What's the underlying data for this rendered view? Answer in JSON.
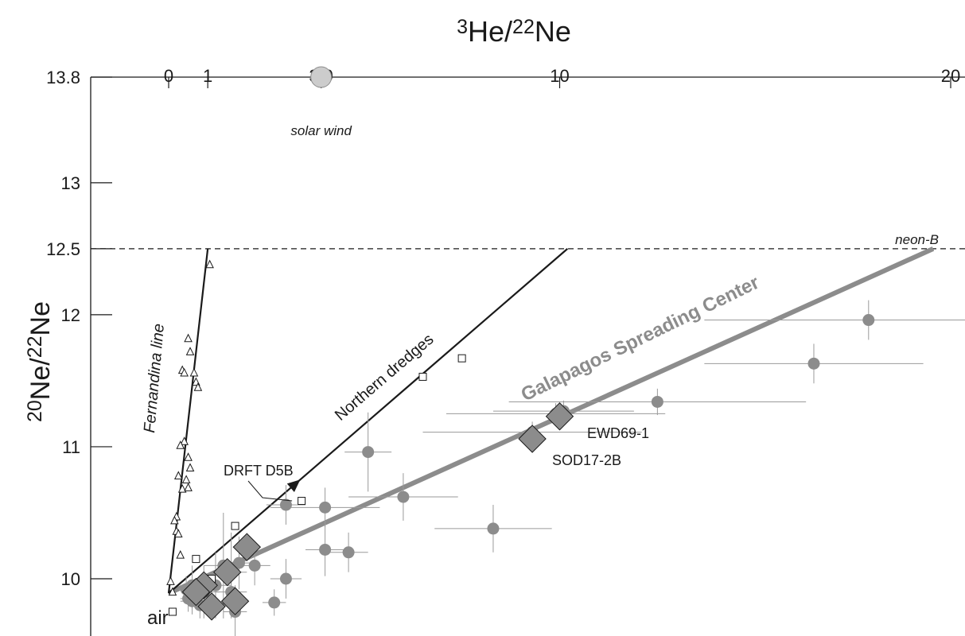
{
  "chart_data": {
    "type": "scatter",
    "title": "",
    "xlabel": "3He/22Ne",
    "ylabel": "20Ne/22Ne",
    "xlim": [
      0,
      20
    ],
    "ylim": [
      9.8,
      13.8
    ],
    "x_axis_position": "top",
    "grid": false,
    "legend": "none",
    "x_ticks": [
      {
        "value": 0,
        "label": "0"
      },
      {
        "value": 1,
        "label": "1"
      },
      {
        "value": 3.9,
        "label": "3.9"
      },
      {
        "value": 10,
        "label": "10"
      },
      {
        "value": 20,
        "label": "20"
      }
    ],
    "y_ticks": [
      {
        "value": 13.8,
        "label": "13.8"
      },
      {
        "value": 13,
        "label": "13"
      },
      {
        "value": 12.5,
        "label": "12.5"
      },
      {
        "value": 12,
        "label": "12"
      },
      {
        "value": 11,
        "label": "11"
      },
      {
        "value": 10,
        "label": "10"
      }
    ],
    "reference_line": {
      "y": 12.5,
      "style": "dashed",
      "label": "neon-B"
    },
    "trend_lines": [
      {
        "label": "Fernandina line",
        "x": [
          0,
          1
        ],
        "y": [
          9.89,
          12.5
        ]
      },
      {
        "label": "Northern dredges",
        "x": [
          0,
          10.2
        ],
        "y": [
          9.89,
          12.5
        ]
      },
      {
        "label": "Galapagos Spreading Center",
        "x": [
          0,
          20
        ],
        "y": [
          9.89,
          12.5
        ],
        "color": "#8c8c8c"
      }
    ],
    "special_points": [
      {
        "label": "solar wind",
        "x": 3.9,
        "y": 13.8,
        "color": "#cccccc"
      },
      {
        "label": "air",
        "x": 0,
        "y": 9.89
      }
    ],
    "series": [
      {
        "name": "",
        "marker": "gray-circle-with-error-bars",
        "color": "#8c8c8c",
        "points": [
          {
            "x": 17.9,
            "y": 11.96,
            "xerr": 4.2,
            "yerr": 0.15
          },
          {
            "x": 16.5,
            "y": 11.63,
            "xerr": 2.8,
            "yerr": 0.15
          },
          {
            "x": 12.5,
            "y": 11.34,
            "xerr": 3.8,
            "yerr": 0.1
          },
          {
            "x": 10.1,
            "y": 11.27,
            "xerr": 1.8,
            "yerr": 0.08
          },
          {
            "x": 9.9,
            "y": 11.25,
            "xerr": 2.8,
            "yerr": 0.08
          },
          {
            "x": 9.3,
            "y": 11.11,
            "xerr": 2.8,
            "yerr": 0.08
          },
          {
            "x": 8.3,
            "y": 10.38,
            "xerr": 1.5,
            "yerr": 0.18
          },
          {
            "x": 5.1,
            "y": 10.96,
            "xerr": 0.6,
            "yerr": 0.3
          },
          {
            "x": 6.0,
            "y": 10.62,
            "xerr": 1.4,
            "yerr": 0.18
          },
          {
            "x": 4.0,
            "y": 10.54,
            "xerr": 1.4,
            "yerr": 0.15
          },
          {
            "x": 3.0,
            "y": 10.56,
            "xerr": 0.5,
            "yerr": 0.15
          },
          {
            "x": 4.0,
            "y": 10.22,
            "xerr": 0.5,
            "yerr": 0.2
          },
          {
            "x": 4.6,
            "y": 10.2,
            "xerr": 0.5,
            "yerr": 0.15
          },
          {
            "x": 3.0,
            "y": 10.0,
            "xerr": 0.4,
            "yerr": 0.15
          },
          {
            "x": 2.7,
            "y": 9.82,
            "xerr": 0.3,
            "yerr": 0.1
          },
          {
            "x": 2.2,
            "y": 10.1,
            "xerr": 0.4,
            "yerr": 0.15
          },
          {
            "x": 1.8,
            "y": 10.12,
            "xerr": 0.5,
            "yerr": 0.2
          },
          {
            "x": 1.6,
            "y": 10.05,
            "xerr": 0.4,
            "yerr": 0.3
          },
          {
            "x": 1.4,
            "y": 10.1,
            "xerr": 0.5,
            "yerr": 0.4
          },
          {
            "x": 1.6,
            "y": 9.9,
            "xerr": 0.4,
            "yerr": 0.2
          },
          {
            "x": 1.7,
            "y": 9.75,
            "xerr": 0.3,
            "yerr": 0.2
          },
          {
            "x": 1.2,
            "y": 9.95,
            "xerr": 0.4,
            "yerr": 0.25
          },
          {
            "x": 0.9,
            "y": 9.9,
            "xerr": 0.4,
            "yerr": 0.2
          },
          {
            "x": 0.6,
            "y": 9.95,
            "xerr": 0.3,
            "yerr": 0.15
          },
          {
            "x": 0.5,
            "y": 9.85,
            "xerr": 0.2,
            "yerr": 0.1
          },
          {
            "x": 0.6,
            "y": 9.83,
            "xerr": 0.3,
            "yerr": 0.1
          },
          {
            "x": 0.45,
            "y": 9.92,
            "xerr": 0.2,
            "yerr": 0.1
          },
          {
            "x": 0.8,
            "y": 9.8,
            "xerr": 0.3,
            "yerr": 0.1
          }
        ]
      },
      {
        "name": "",
        "marker": "gray-diamond",
        "color": "#8c8c8c",
        "points": [
          {
            "x": 10.0,
            "y": 11.23,
            "label": "EWD69-1"
          },
          {
            "x": 9.3,
            "y": 11.06,
            "label": "SOD17-2B"
          },
          {
            "x": 2.0,
            "y": 10.24
          },
          {
            "x": 1.5,
            "y": 10.05
          },
          {
            "x": 0.9,
            "y": 9.95
          },
          {
            "x": 0.7,
            "y": 9.9
          },
          {
            "x": 1.1,
            "y": 9.79
          },
          {
            "x": 1.7,
            "y": 9.83
          }
        ]
      },
      {
        "name": "",
        "marker": "open-square",
        "color": "#1a1a1a",
        "points": [
          {
            "x": 7.5,
            "y": 11.67
          },
          {
            "x": 6.5,
            "y": 11.53
          },
          {
            "x": 3.4,
            "y": 10.59,
            "label": "DRFT D5B"
          },
          {
            "x": 1.7,
            "y": 10.4
          },
          {
            "x": 0.7,
            "y": 10.15
          },
          {
            "x": 1.1,
            "y": 10.0
          },
          {
            "x": 0.1,
            "y": 9.75
          }
        ]
      },
      {
        "name": "",
        "marker": "open-triangle",
        "color": "#1a1a1a",
        "points": [
          {
            "x": 1.05,
            "y": 12.38
          },
          {
            "x": 0.5,
            "y": 11.82
          },
          {
            "x": 0.55,
            "y": 11.72
          },
          {
            "x": 0.65,
            "y": 11.56
          },
          {
            "x": 0.35,
            "y": 11.58
          },
          {
            "x": 0.4,
            "y": 11.56
          },
          {
            "x": 0.7,
            "y": 11.49
          },
          {
            "x": 0.75,
            "y": 11.45
          },
          {
            "x": 0.4,
            "y": 11.04
          },
          {
            "x": 0.3,
            "y": 11.01
          },
          {
            "x": 0.5,
            "y": 10.92
          },
          {
            "x": 0.55,
            "y": 10.84
          },
          {
            "x": 0.25,
            "y": 10.78
          },
          {
            "x": 0.45,
            "y": 10.75
          },
          {
            "x": 0.35,
            "y": 10.68
          },
          {
            "x": 0.5,
            "y": 10.69
          },
          {
            "x": 0.2,
            "y": 10.47
          },
          {
            "x": 0.15,
            "y": 10.44
          },
          {
            "x": 0.2,
            "y": 10.36
          },
          {
            "x": 0.25,
            "y": 10.34
          },
          {
            "x": 0.3,
            "y": 10.18
          },
          {
            "x": 0.05,
            "y": 9.98
          },
          {
            "x": 0.1,
            "y": 9.9
          }
        ]
      }
    ]
  }
}
